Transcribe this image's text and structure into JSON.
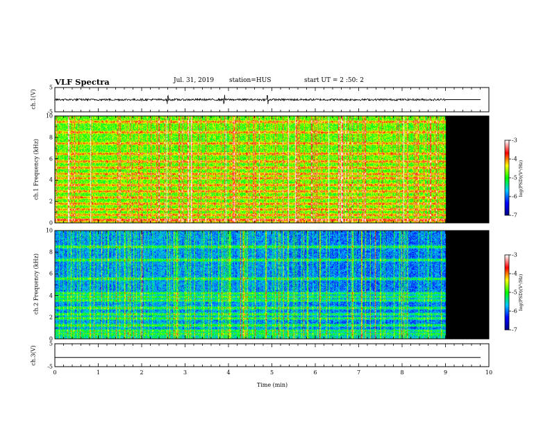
{
  "header": {
    "title": "VLF Spectra",
    "date": "Jul. 31, 2019",
    "station": "station=HUS",
    "start": "start UT = 2 :50: 2"
  },
  "colormap": {
    "stops": [
      "#000080",
      "#0000ff",
      "#00c8ff",
      "#00ff00",
      "#ffff00",
      "#ff0000",
      "#ffffff"
    ]
  },
  "chart_data": [
    {
      "type": "line",
      "panel": "ch1-waveform",
      "ylabel": "ch.1(V)",
      "ylim": [
        -5,
        5
      ],
      "yticks": [
        "5",
        "-5"
      ],
      "xlim": [
        0,
        10
      ],
      "data_end_min": 9.0,
      "baseline": 0,
      "description_values": {
        "typical_amplitude_V": 0.4,
        "spikes_min": [
          2.6,
          3.9,
          4.9
        ]
      }
    },
    {
      "type": "heatmap",
      "panel": "ch1-spectrogram",
      "ylabel": "ch.1 Frequency (kHz)",
      "ylim": [
        0,
        10
      ],
      "yticks": [
        "0",
        "2",
        "4",
        "6",
        "8",
        "10"
      ],
      "xlim": [
        0,
        10
      ],
      "data_end_min": 9.0,
      "background_level": 0.55,
      "bands_khz": [
        0.3,
        0.75,
        1.3,
        1.8,
        2.4,
        3.0,
        3.6,
        4.2,
        4.6,
        5.2,
        5.8,
        6.5,
        7.5,
        8.5,
        9.5
      ],
      "colorbar": {
        "label": "log(PSD)(V²/Hz)",
        "range": [
          -7,
          -3
        ],
        "ticks": [
          "-3",
          "-4",
          "-5",
          "-6",
          "-7"
        ]
      }
    },
    {
      "type": "heatmap",
      "panel": "ch2-spectrogram",
      "ylabel": "ch.2 Frequency (kHz)",
      "ylim": [
        0,
        10
      ],
      "yticks": [
        "0",
        "2",
        "4",
        "6",
        "8",
        "10"
      ],
      "xlim": [
        0,
        10
      ],
      "data_end_min": 9.0,
      "background_level": 0.3,
      "bands_khz": [
        0.5,
        0.8,
        1.3,
        1.9,
        2.3,
        2.9,
        3.6,
        3.9,
        4.2,
        5.6,
        7.3,
        8.5
      ],
      "colorbar": {
        "label": "log(PSD)(V²/Hz)",
        "range": [
          -7,
          -3
        ],
        "ticks": [
          "-3",
          "-4",
          "-5",
          "-6",
          "-7"
        ]
      }
    },
    {
      "type": "line",
      "panel": "ch3-waveform",
      "ylabel": "ch.3(V)",
      "ylim": [
        -5,
        5
      ],
      "yticks": [
        "5",
        "-5"
      ],
      "xlim": [
        0,
        10
      ],
      "baseline": -1.0
    }
  ],
  "xaxis": {
    "label": "Time (min)",
    "ticks": [
      "0",
      "1",
      "2",
      "3",
      "4",
      "5",
      "6",
      "7",
      "8",
      "9",
      "10"
    ]
  }
}
